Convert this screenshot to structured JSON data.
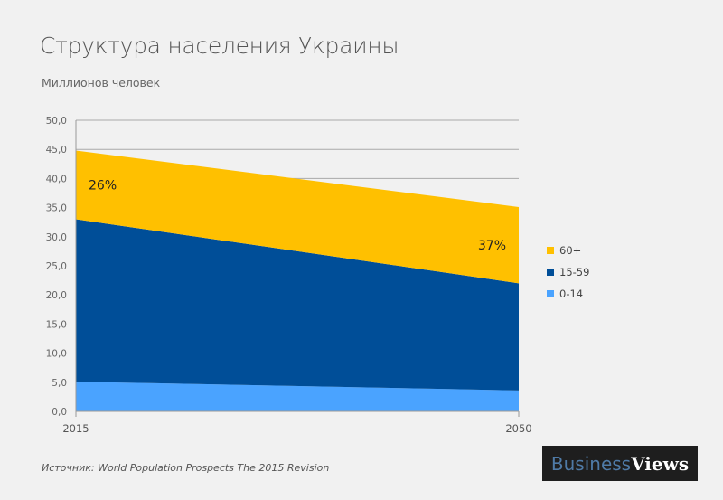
{
  "chart_data": {
    "type": "area",
    "stacked": true,
    "title": "Структура населения Украины",
    "subtitle": "Миллионов человек",
    "x": [
      "2015",
      "2050"
    ],
    "ylim": [
      0,
      50
    ],
    "yticks": [
      "0,0",
      "5,0",
      "10,0",
      "15,0",
      "20,0",
      "25,0",
      "30,0",
      "35,0",
      "40,0",
      "45,0",
      "50,0"
    ],
    "grid": true,
    "legend_position": "right",
    "series": [
      {
        "name": "0-14",
        "values": [
          5.1,
          3.6
        ],
        "color": "#4aa3ff"
      },
      {
        "name": "15-59",
        "values": [
          27.9,
          18.4
        ],
        "color": "#004e98"
      },
      {
        "name": "60+",
        "values": [
          11.8,
          13.1
        ],
        "color": "#ffc000"
      }
    ],
    "annotations": [
      {
        "text": "26%",
        "x": "2015",
        "series": "60+"
      },
      {
        "text": "37%",
        "x": "2050",
        "series": "60+"
      }
    ],
    "source": "Источник:  World Population Prospects The 2015 Revision"
  },
  "logo": {
    "part1": "Business",
    "part2": "Views"
  }
}
